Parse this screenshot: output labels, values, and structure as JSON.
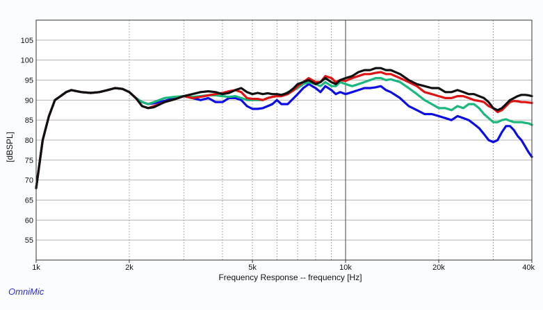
{
  "chart_data": {
    "type": "line",
    "title": "",
    "xlabel": "Frequency Response -- frequency [Hz]",
    "ylabel": "[dBSPL]",
    "x_scale": "log",
    "xlim": [
      1000,
      40000
    ],
    "ylim": [
      50,
      110
    ],
    "x_ticks": [
      {
        "value": 1000,
        "label": "1k"
      },
      {
        "value": 2000,
        "label": "2k"
      },
      {
        "value": 5000,
        "label": "5k"
      },
      {
        "value": 10000,
        "label": "10k"
      },
      {
        "value": 20000,
        "label": "20k"
      },
      {
        "value": 40000,
        "label": "40k"
      }
    ],
    "y_ticks": [
      55,
      60,
      65,
      70,
      75,
      80,
      85,
      90,
      95,
      100,
      105
    ],
    "grid": true,
    "series": [
      {
        "color": "#0c0ce6",
        "x": [
          1000,
          1050,
          1100,
          1150,
          1200,
          1250,
          1300,
          1400,
          1500,
          1600,
          1700,
          1800,
          1900,
          2000,
          2100,
          2200,
          2300,
          2400,
          2600,
          2800,
          3000,
          3200,
          3400,
          3600,
          3800,
          4000,
          4200,
          4400,
          4600,
          4800,
          5000,
          5200,
          5400,
          5600,
          5800,
          6000,
          6200,
          6500,
          6800,
          7000,
          7300,
          7600,
          8000,
          8300,
          8600,
          9000,
          9300,
          9600,
          10000,
          10500,
          11000,
          11500,
          12000,
          12500,
          13000,
          13500,
          14000,
          15000,
          16000,
          17000,
          18000,
          19000,
          20000,
          21000,
          22000,
          23000,
          24000,
          25000,
          26000,
          27000,
          28000,
          29000,
          30000,
          31000,
          32000,
          33000,
          34000,
          35000,
          36000,
          37000,
          38000,
          39000,
          40000
        ],
        "y": [
          68,
          80,
          86,
          90,
          91,
          92,
          92.5,
          92,
          91.8,
          92,
          92.5,
          93,
          92.8,
          92,
          90.5,
          89.5,
          89,
          89.2,
          89.8,
          90.5,
          91,
          90.5,
          90,
          90.5,
          89.5,
          89.5,
          90.5,
          90.5,
          90,
          88.5,
          87.8,
          87.8,
          88,
          88.5,
          89,
          90,
          89,
          89,
          90.5,
          91.5,
          93,
          94,
          93,
          92,
          93.5,
          92.5,
          91.5,
          92,
          91.5,
          92,
          92.5,
          93,
          93,
          93.2,
          93.5,
          92.5,
          92,
          90.5,
          88.5,
          87.5,
          86.5,
          86.5,
          86,
          85.5,
          85,
          86,
          85.5,
          85,
          84,
          83,
          81.5,
          80,
          79.5,
          80,
          82,
          83.5,
          83.5,
          82.5,
          81,
          80,
          78.5,
          77,
          75.8
        ]
      },
      {
        "color": "#1bb87d",
        "x": [
          1000,
          1050,
          1100,
          1150,
          1200,
          1250,
          1300,
          1400,
          1500,
          1600,
          1700,
          1800,
          1900,
          2000,
          2100,
          2200,
          2300,
          2400,
          2600,
          2800,
          3000,
          3200,
          3400,
          3600,
          3800,
          4000,
          4200,
          4400,
          4600,
          4800,
          5000,
          5200,
          5400,
          5600,
          5800,
          6000,
          6200,
          6500,
          6800,
          7000,
          7300,
          7600,
          8000,
          8300,
          8600,
          9000,
          9300,
          9600,
          10000,
          10500,
          11000,
          11500,
          12000,
          12500,
          13000,
          13500,
          14000,
          15000,
          16000,
          17000,
          18000,
          19000,
          20000,
          21000,
          22000,
          23000,
          24000,
          25000,
          26000,
          27000,
          28000,
          29000,
          30000,
          31000,
          32000,
          33000,
          34000,
          35000,
          36000,
          37000,
          38000,
          39000,
          40000
        ],
        "y": [
          68,
          80,
          86,
          90,
          91,
          92,
          92.5,
          92,
          91.8,
          92,
          92.5,
          93,
          92.8,
          92,
          90.5,
          89.5,
          89,
          89.5,
          90.5,
          90.8,
          91,
          90.8,
          91,
          91.2,
          91.2,
          91,
          90.8,
          91,
          90.5,
          90,
          90,
          90,
          90,
          90.5,
          90.8,
          91,
          91,
          92,
          92.5,
          93,
          94,
          94.5,
          94,
          93.5,
          94.5,
          93.5,
          93.5,
          94.5,
          94,
          93.5,
          94,
          94.5,
          95,
          95.5,
          95.5,
          95,
          95.2,
          94.5,
          93,
          91.5,
          90,
          89,
          88,
          88,
          87.5,
          88.5,
          88,
          89,
          89,
          88,
          86.5,
          85.5,
          84.5,
          84.5,
          85,
          85.2,
          84.8,
          84.5,
          84.5,
          84.5,
          84.3,
          84.2,
          83.8
        ]
      },
      {
        "color": "#e01313",
        "x": [
          1000,
          1050,
          1100,
          1150,
          1200,
          1250,
          1300,
          1400,
          1500,
          1600,
          1700,
          1800,
          1900,
          2000,
          2100,
          2200,
          2300,
          2400,
          2600,
          2800,
          3000,
          3200,
          3400,
          3600,
          3800,
          4000,
          4200,
          4400,
          4600,
          4800,
          5000,
          5200,
          5400,
          5600,
          5800,
          6000,
          6200,
          6500,
          6800,
          7000,
          7300,
          7600,
          8000,
          8300,
          8600,
          9000,
          9300,
          9600,
          10000,
          10500,
          11000,
          11500,
          12000,
          12500,
          13000,
          13500,
          14000,
          15000,
          16000,
          17000,
          18000,
          19000,
          20000,
          21000,
          22000,
          23000,
          24000,
          25000,
          26000,
          27000,
          28000,
          29000,
          30000,
          31000,
          32000,
          33000,
          34000,
          35000,
          36000,
          37000,
          38000,
          39000,
          40000
        ],
        "y": [
          68,
          80,
          86,
          90,
          91,
          92,
          92.5,
          92,
          91.8,
          92,
          92.5,
          93,
          92.8,
          92,
          90.5,
          88.5,
          88,
          88.5,
          89.5,
          90.2,
          91,
          90.5,
          90.8,
          91.2,
          91.5,
          91.8,
          92.2,
          92.5,
          92,
          90.5,
          90.3,
          90.3,
          90,
          90.5,
          90.8,
          91,
          91,
          91.5,
          92.5,
          93.5,
          94.5,
          95.5,
          94.5,
          94.5,
          96,
          95.5,
          94.5,
          95,
          94.8,
          95.5,
          96,
          96.5,
          96.5,
          96.8,
          97,
          96.5,
          96.5,
          95.5,
          94.5,
          93.5,
          92,
          91.5,
          91,
          90.5,
          90.5,
          91,
          91,
          90.5,
          90,
          89.8,
          89.5,
          88.5,
          88,
          87,
          87.5,
          88.5,
          89.5,
          89.8,
          89.7,
          89.5,
          89.5,
          89.4,
          89.3
        ]
      },
      {
        "color": "#111111",
        "x": [
          1000,
          1050,
          1100,
          1150,
          1200,
          1250,
          1300,
          1400,
          1500,
          1600,
          1700,
          1800,
          1900,
          2000,
          2100,
          2200,
          2300,
          2400,
          2600,
          2800,
          3000,
          3200,
          3400,
          3600,
          3800,
          4000,
          4200,
          4400,
          4600,
          4800,
          5000,
          5200,
          5400,
          5600,
          5800,
          6000,
          6200,
          6500,
          6800,
          7000,
          7300,
          7600,
          8000,
          8300,
          8600,
          9000,
          9300,
          9600,
          10000,
          10500,
          11000,
          11500,
          12000,
          12500,
          13000,
          13500,
          14000,
          15000,
          16000,
          17000,
          18000,
          19000,
          20000,
          21000,
          22000,
          23000,
          24000,
          25000,
          26000,
          27000,
          28000,
          29000,
          30000,
          31000,
          32000,
          33000,
          34000,
          35000,
          36000,
          37000,
          38000,
          39000,
          40000
        ],
        "y": [
          68,
          80,
          86,
          90,
          91,
          92,
          92.5,
          92,
          91.8,
          92,
          92.5,
          93,
          92.8,
          92,
          90.5,
          88.5,
          88,
          88.2,
          89.5,
          90.2,
          91,
          91.5,
          92,
          92.2,
          92,
          91.5,
          91.8,
          92.5,
          93,
          92,
          91.5,
          91.8,
          91.5,
          91.7,
          91.5,
          91.5,
          91.3,
          91.8,
          93,
          94,
          94.5,
          95,
          94,
          94.5,
          95.5,
          94.5,
          94,
          95,
          95.5,
          96,
          97,
          97.5,
          97.5,
          98,
          98,
          97.5,
          97.5,
          96.5,
          95,
          94,
          93.5,
          93,
          93,
          92,
          92,
          92.5,
          92,
          91.5,
          91.5,
          91,
          90.5,
          89.5,
          88,
          87.5,
          88,
          89,
          90,
          90.5,
          91,
          91.3,
          91.3,
          91.2,
          91
        ]
      }
    ]
  },
  "watermark": "OmniMic"
}
